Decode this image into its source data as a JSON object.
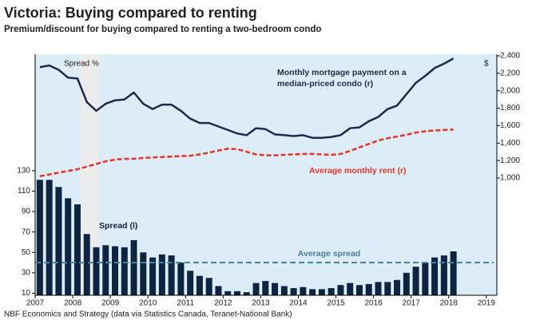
{
  "chart_data": {
    "type": "combo",
    "title": "Victoria: Buying compared to renting",
    "subtitle": "Premium/discount for buying compared to renting a two-bedroom condo",
    "source": "NBF Economics and Strategy (data via Statistics Canada, Teranet-National Bank)",
    "y_axis_label": "Spread %",
    "y2_axis_label": "$",
    "x": [
      2007.125,
      2007.375,
      2007.625,
      2007.875,
      2008.125,
      2008.375,
      2008.625,
      2008.875,
      2009.125,
      2009.375,
      2009.625,
      2009.875,
      2010.125,
      2010.375,
      2010.625,
      2010.875,
      2011.125,
      2011.375,
      2011.625,
      2011.875,
      2012.125,
      2012.375,
      2012.625,
      2012.875,
      2013.125,
      2013.375,
      2013.625,
      2013.875,
      2014.125,
      2014.375,
      2014.625,
      2014.875,
      2015.125,
      2015.375,
      2015.625,
      2015.875,
      2016.125,
      2016.375,
      2016.625,
      2016.875,
      2017.125,
      2017.375,
      2017.625,
      2017.875,
      2018.125
    ],
    "series": [
      {
        "type": "bar",
        "axis": "y",
        "color": "#0e2542",
        "values": [
          121,
          121,
          114,
          103,
          97,
          68,
          55,
          57,
          56,
          55,
          62,
          50,
          45,
          48,
          47,
          40,
          32,
          27,
          25,
          17,
          12,
          12,
          11,
          20,
          22,
          20,
          17,
          15,
          16,
          14,
          14,
          15,
          18,
          20,
          18,
          19,
          21,
          21,
          23,
          30,
          36,
          40,
          45,
          47,
          51
        ]
      },
      {
        "type": "line",
        "axis": "y2",
        "color": "#1b2c4b",
        "dash": false,
        "values": [
          2270,
          2290,
          2240,
          2150,
          2140,
          1870,
          1770,
          1850,
          1890,
          1900,
          1980,
          1850,
          1790,
          1840,
          1840,
          1770,
          1680,
          1630,
          1630,
          1590,
          1550,
          1510,
          1490,
          1570,
          1560,
          1500,
          1490,
          1480,
          1490,
          1460,
          1460,
          1470,
          1490,
          1570,
          1580,
          1650,
          1700,
          1790,
          1830,
          1960,
          2090,
          2170,
          2260,
          2310,
          2370
        ]
      },
      {
        "type": "line",
        "axis": "y2",
        "color": "#e5322a",
        "dash": true,
        "values": [
          1020,
          1040,
          1060,
          1080,
          1100,
          1130,
          1160,
          1190,
          1210,
          1220,
          1220,
          1230,
          1235,
          1240,
          1245,
          1250,
          1255,
          1270,
          1290,
          1315,
          1335,
          1330,
          1300,
          1270,
          1260,
          1260,
          1265,
          1270,
          1275,
          1275,
          1270,
          1265,
          1275,
          1310,
          1350,
          1390,
          1430,
          1455,
          1475,
          1495,
          1520,
          1535,
          1545,
          1550,
          1555
        ]
      }
    ],
    "annotations": [
      {
        "lines": [
          "Monthly mortgage payment on a",
          "median-priced condo (r)"
        ],
        "color": "#1b2c4b"
      },
      {
        "lines": [
          "Average monthly rent (r)"
        ],
        "color": "#e5322a"
      },
      {
        "lines": [
          "Spread (l)"
        ],
        "color": "#0e2542"
      }
    ],
    "reference_line": {
      "label": "Average spread",
      "value": 40,
      "axis": "y",
      "color": "#4d7e9c"
    },
    "shaded_range": [
      2008.2,
      2008.7
    ],
    "xlim": [
      2007,
      2019.28
    ],
    "xticks": [
      2007,
      2008,
      2009,
      2010,
      2011,
      2012,
      2013,
      2014,
      2015,
      2016,
      2017,
      2018,
      2019
    ],
    "ylim": [
      8,
      244
    ],
    "yticks": [
      10,
      30,
      50,
      70,
      90,
      110,
      130
    ],
    "y2lim": [
      -345,
      2418
    ],
    "y2ticks": [
      {
        "value": 1000,
        "label": "1,000"
      },
      {
        "value": 1200,
        "label": "1,200"
      },
      {
        "value": 1400,
        "label": "1,400"
      },
      {
        "value": 1600,
        "label": "1,600"
      },
      {
        "value": 1800,
        "label": "1,800"
      },
      {
        "value": 2000,
        "label": "2,000"
      },
      {
        "value": 2200,
        "label": "2,200"
      },
      {
        "value": 2400,
        "label": "2,400"
      }
    ]
  }
}
